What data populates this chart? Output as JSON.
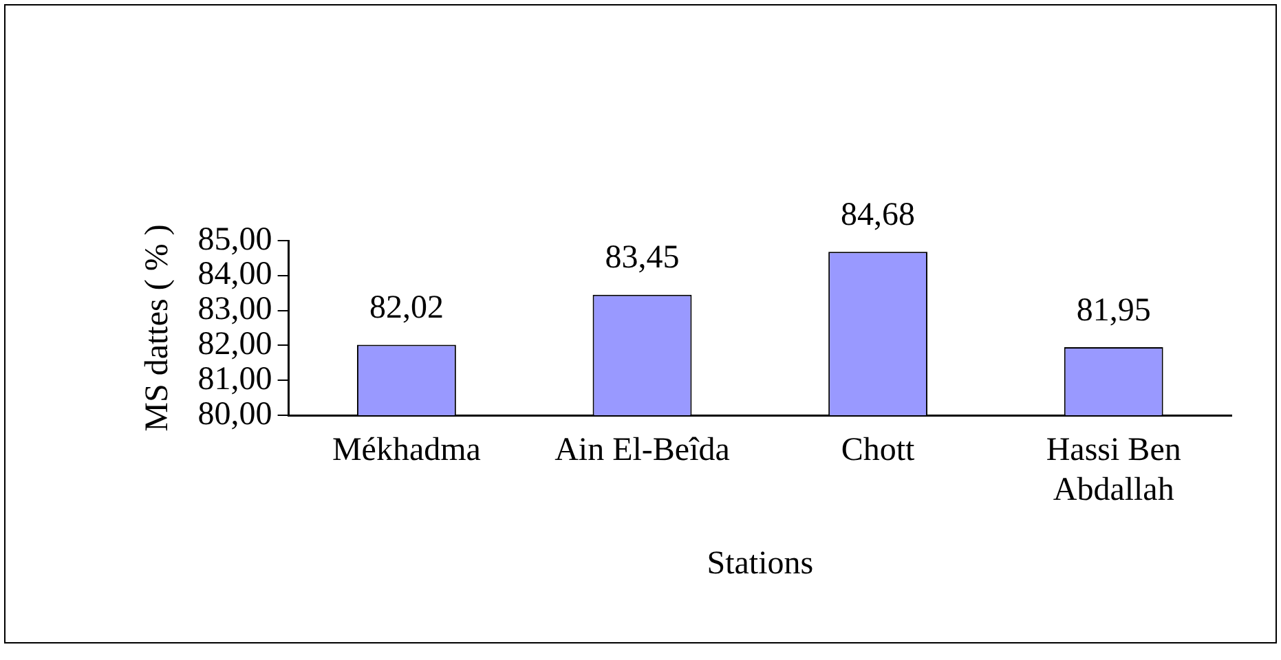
{
  "chart_data": {
    "type": "bar",
    "xlabel": "Stations",
    "ylabel": "MS dattes ( % )",
    "categories": [
      "Mékhadma",
      "Ain El-Beîda",
      "Chott",
      "Hassi Ben Abdallah"
    ],
    "values": [
      82.02,
      83.45,
      84.68,
      81.95
    ],
    "value_labels": [
      "82,02",
      "83,45",
      "84,68",
      "81,95"
    ],
    "color": "#9999ff",
    "ylim": [
      80,
      85
    ],
    "yticks": [
      {
        "value": 80,
        "label": "80,00"
      },
      {
        "value": 81,
        "label": "81,00"
      },
      {
        "value": 82,
        "label": "82,00"
      },
      {
        "value": 83,
        "label": "83,00"
      },
      {
        "value": 84,
        "label": "84,00"
      },
      {
        "value": 85,
        "label": "85,00"
      }
    ],
    "grid": false,
    "legend": false
  }
}
